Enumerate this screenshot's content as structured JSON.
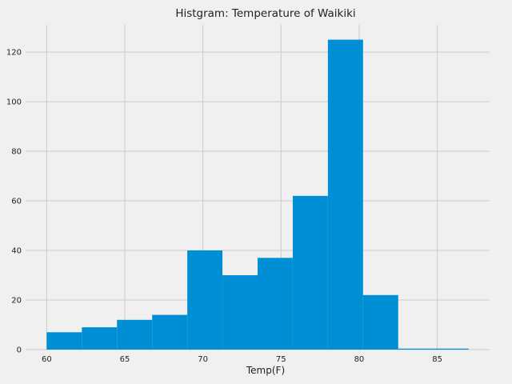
{
  "chart_data": {
    "type": "bar",
    "title": "Histgram: Temperature of Waikiki",
    "xlabel": "Temp(F)",
    "ylabel": "",
    "xlim": [
      58.65,
      88.35
    ],
    "ylim": [
      0,
      131
    ],
    "xticks": [
      60,
      65,
      70,
      75,
      80,
      85
    ],
    "yticks": [
      0,
      20,
      40,
      60,
      80,
      100,
      120
    ],
    "grid": true,
    "bin_edges": [
      60,
      62.25,
      64.5,
      66.75,
      69,
      71.25,
      73.5,
      75.75,
      78,
      80.25,
      82.5,
      84.75,
      87
    ],
    "counts": [
      7,
      9,
      12,
      14,
      40,
      30,
      37,
      62,
      125,
      22,
      0.4,
      0.4
    ],
    "colors": {
      "bar": "#008fd5",
      "grid": "#cbcbcb",
      "background": "#f0f0f0"
    }
  }
}
